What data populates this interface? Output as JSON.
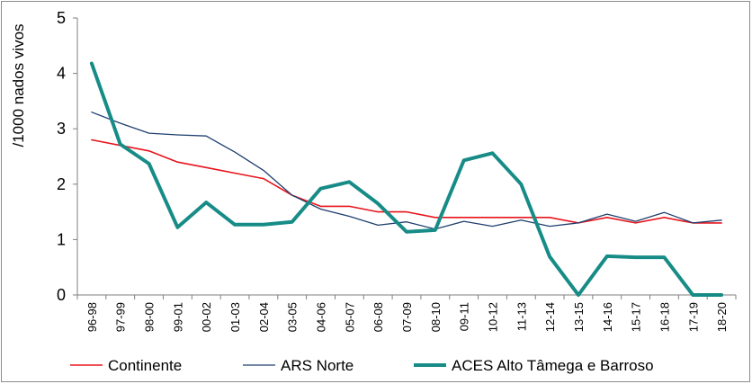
{
  "chart_data": {
    "type": "line",
    "ylabel": "/1000 nados vivos",
    "xlabel": "",
    "ylim": [
      0,
      5
    ],
    "yticks": [
      0,
      1,
      2,
      3,
      4,
      5
    ],
    "grid": false,
    "legend_position": "bottom",
    "categories": [
      "96-98",
      "97-99",
      "98-00",
      "99-01",
      "00-02",
      "01-03",
      "02-04",
      "03-05",
      "04-06",
      "05-07",
      "06-08",
      "07-09",
      "08-10",
      "09-11",
      "10-12",
      "11-13",
      "12-14",
      "13-15",
      "14-16",
      "15-17",
      "16-18",
      "17-19",
      "18-20"
    ],
    "series": [
      {
        "name": "Continente",
        "color": "#e8141c",
        "width": 1.6,
        "values": [
          2.8,
          2.7,
          2.6,
          2.4,
          2.3,
          2.2,
          2.1,
          1.8,
          1.6,
          1.6,
          1.5,
          1.5,
          1.4,
          1.4,
          1.4,
          1.4,
          1.4,
          1.3,
          1.4,
          1.3,
          1.4,
          1.3,
          1.3
        ]
      },
      {
        "name": "ARS Norte",
        "color": "#1f3f6e",
        "width": 1.3,
        "values": [
          3.3,
          3.1,
          2.92,
          2.89,
          2.87,
          2.58,
          2.25,
          1.8,
          1.55,
          1.42,
          1.26,
          1.32,
          1.19,
          1.33,
          1.24,
          1.35,
          1.24,
          1.3,
          1.46,
          1.33,
          1.49,
          1.3,
          1.35
        ]
      },
      {
        "name": "ACES Alto Tâmega e Barroso",
        "color": "#178c87",
        "width": 4,
        "values": [
          4.18,
          2.72,
          2.37,
          1.22,
          1.67,
          1.27,
          1.27,
          1.32,
          1.92,
          2.04,
          1.65,
          1.14,
          1.17,
          2.43,
          2.56,
          2.0,
          0.69,
          0.0,
          0.7,
          0.68,
          0.68,
          0.0,
          0.0
        ]
      }
    ]
  }
}
